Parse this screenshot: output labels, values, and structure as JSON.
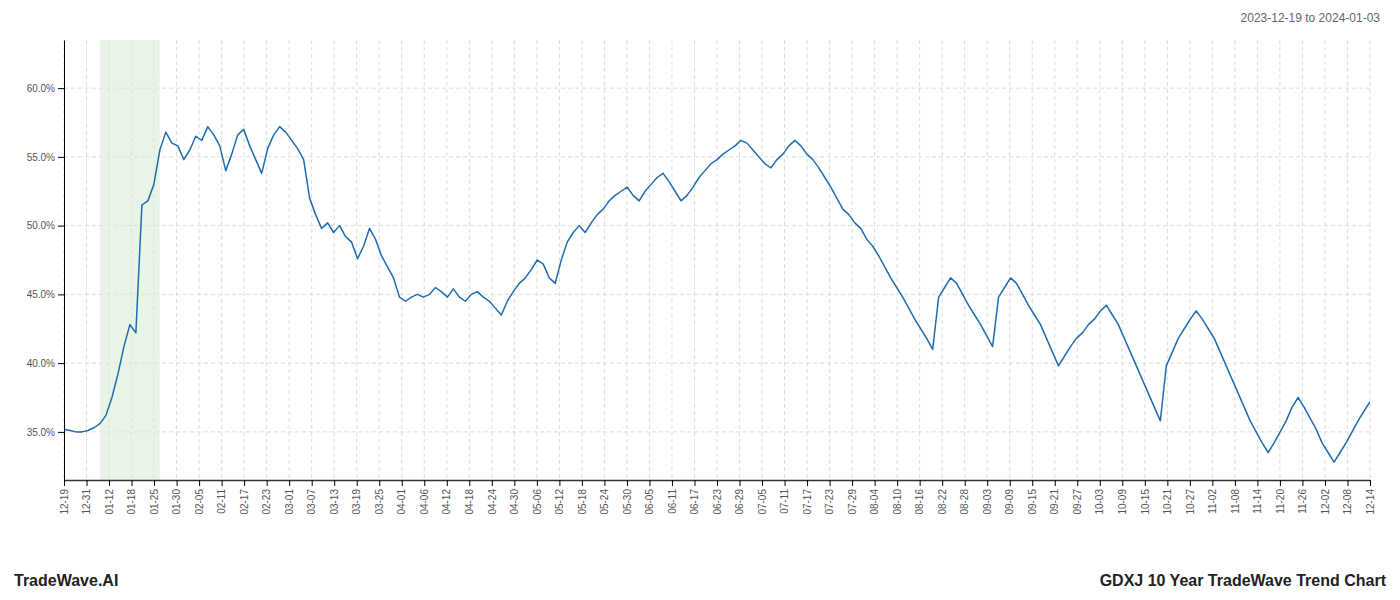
{
  "chart_data": {
    "type": "line",
    "title": "GDXJ 10 Year TradeWave Trend Chart",
    "subtitle": "2023-12-19 to 2024-01-03",
    "annotations": [
      "TradeWave.AI"
    ],
    "color": "#1f6cb0",
    "grid": true,
    "highlight": {
      "start": 6,
      "end": 16,
      "color": "#d6ecd2"
    },
    "xlim": [
      0,
      218
    ],
    "xticks": [
      {
        "value": 0,
        "label": "12-19"
      },
      {
        "value": 3.7586,
        "label": "12-31"
      },
      {
        "value": 7.5172,
        "label": "01-12"
      },
      {
        "value": 11.2759,
        "label": "01-18"
      },
      {
        "value": 15.0345,
        "label": "01-25"
      },
      {
        "value": 18.7931,
        "label": "01-30"
      },
      {
        "value": 22.5517,
        "label": "02-05"
      },
      {
        "value": 26.3103,
        "label": "02-11"
      },
      {
        "value": 30.069,
        "label": "02-17"
      },
      {
        "value": 33.8276,
        "label": "02-23"
      },
      {
        "value": 37.5862,
        "label": "03-01"
      },
      {
        "value": 41.3448,
        "label": "03-07"
      },
      {
        "value": 45.1034,
        "label": "03-13"
      },
      {
        "value": 48.8621,
        "label": "03-19"
      },
      {
        "value": 52.6207,
        "label": "03-25"
      },
      {
        "value": 56.3793,
        "label": "04-01"
      },
      {
        "value": 60.1379,
        "label": "04-06"
      },
      {
        "value": 63.8966,
        "label": "04-12"
      },
      {
        "value": 67.6552,
        "label": "04-18"
      },
      {
        "value": 71.4138,
        "label": "04-24"
      },
      {
        "value": 75.1724,
        "label": "04-30"
      },
      {
        "value": 78.931,
        "label": "05-06"
      },
      {
        "value": 82.6897,
        "label": "05-12"
      },
      {
        "value": 86.4483,
        "label": "05-18"
      },
      {
        "value": 90.2069,
        "label": "05-24"
      },
      {
        "value": 93.9655,
        "label": "05-30"
      },
      {
        "value": 97.7241,
        "label": "06-05"
      },
      {
        "value": 101.4828,
        "label": "06-11"
      },
      {
        "value": 105.2414,
        "label": "06-17"
      },
      {
        "value": 109,
        "label": "06-23"
      },
      {
        "value": 112.7586,
        "label": "06-29"
      },
      {
        "value": 116.5172,
        "label": "07-05"
      },
      {
        "value": 120.2759,
        "label": "07-11"
      },
      {
        "value": 124.0345,
        "label": "07-17"
      },
      {
        "value": 127.7931,
        "label": "07-23"
      },
      {
        "value": 131.5517,
        "label": "07-29"
      },
      {
        "value": 135.3103,
        "label": "08-04"
      },
      {
        "value": 139.069,
        "label": "08-10"
      },
      {
        "value": 142.8276,
        "label": "08-16"
      },
      {
        "value": 146.5862,
        "label": "08-22"
      },
      {
        "value": 150.3448,
        "label": "08-28"
      },
      {
        "value": 154.1034,
        "label": "09-03"
      },
      {
        "value": 157.8621,
        "label": "09-09"
      },
      {
        "value": 161.6207,
        "label": "09-15"
      },
      {
        "value": 165.3793,
        "label": "09-21"
      },
      {
        "value": 169.1379,
        "label": "09-27"
      },
      {
        "value": 172.8966,
        "label": "10-03"
      },
      {
        "value": 176.6552,
        "label": "10-09"
      },
      {
        "value": 180.4138,
        "label": "10-15"
      },
      {
        "value": 184.1724,
        "label": "10-21"
      },
      {
        "value": 187.931,
        "label": "10-27"
      },
      {
        "value": 191.6897,
        "label": "11-02"
      },
      {
        "value": 195.4483,
        "label": "11-08"
      },
      {
        "value": 199.2069,
        "label": "11-14"
      },
      {
        "value": 202.9655,
        "label": "11-20"
      },
      {
        "value": 206.7241,
        "label": "11-26"
      },
      {
        "value": 210.4828,
        "label": "12-02"
      },
      {
        "value": 214.2414,
        "label": "12-08"
      },
      {
        "value": 218,
        "label": "12-14"
      }
    ],
    "ylim": [
      0.315,
      0.635
    ],
    "yticks": [
      {
        "value": 0.35,
        "label": "35.0%"
      },
      {
        "value": 0.4,
        "label": "40.0%"
      },
      {
        "value": 0.45,
        "label": "45.0%"
      },
      {
        "value": 0.5,
        "label": "50.0%"
      },
      {
        "value": 0.55,
        "label": "55.0%"
      },
      {
        "value": 0.6,
        "label": "60.0%"
      }
    ],
    "values": [
      0.352,
      0.351,
      0.35,
      0.35,
      0.351,
      0.353,
      0.356,
      0.362,
      0.375,
      0.392,
      0.412,
      0.428,
      0.422,
      0.515,
      0.518,
      0.53,
      0.555,
      0.568,
      0.56,
      0.558,
      0.548,
      0.555,
      0.565,
      0.562,
      0.572,
      0.566,
      0.558,
      0.54,
      0.552,
      0.566,
      0.57,
      0.558,
      0.548,
      0.538,
      0.556,
      0.566,
      0.572,
      0.568,
      0.562,
      0.556,
      0.548,
      0.52,
      0.508,
      0.498,
      0.502,
      0.495,
      0.5,
      0.492,
      0.488,
      0.476,
      0.485,
      0.498,
      0.49,
      0.478,
      0.47,
      0.462,
      0.448,
      0.445,
      0.448,
      0.45,
      0.448,
      0.45,
      0.455,
      0.452,
      0.448,
      0.454,
      0.448,
      0.445,
      0.45,
      0.452,
      0.448,
      0.445,
      0.44,
      0.435,
      0.445,
      0.452,
      0.458,
      0.462,
      0.468,
      0.475,
      0.472,
      0.462,
      0.458,
      0.475,
      0.488,
      0.495,
      0.5,
      0.495,
      0.502,
      0.508,
      0.512,
      0.518,
      0.522,
      0.525,
      0.528,
      0.522,
      0.518,
      0.525,
      0.53,
      0.535,
      0.538,
      0.532,
      0.525,
      0.518,
      0.522,
      0.528,
      0.535,
      0.54,
      0.545,
      0.548,
      0.552,
      0.555,
      0.558,
      0.562,
      0.56,
      0.555,
      0.55,
      0.545,
      0.542,
      0.548,
      0.552,
      0.558,
      0.562,
      0.558,
      0.552,
      0.548,
      0.542,
      0.535,
      0.528,
      0.52,
      0.512,
      0.508,
      0.502,
      0.498,
      0.49,
      0.485,
      0.478,
      0.47,
      0.462,
      0.455,
      0.448,
      0.44,
      0.432,
      0.425,
      0.418,
      0.41,
      0.448,
      0.455,
      0.462,
      0.458,
      0.45,
      0.442,
      0.435,
      0.428,
      0.42,
      0.412,
      0.448,
      0.455,
      0.462,
      0.458,
      0.45,
      0.442,
      0.435,
      0.428,
      0.418,
      0.408,
      0.398,
      0.405,
      0.412,
      0.418,
      0.422,
      0.428,
      0.432,
      0.438,
      0.442,
      0.435,
      0.428,
      0.418,
      0.408,
      0.398,
      0.388,
      0.378,
      0.368,
      0.358,
      0.398,
      0.408,
      0.418,
      0.425,
      0.432,
      0.438,
      0.432,
      0.425,
      0.418,
      0.408,
      0.398,
      0.388,
      0.378,
      0.368,
      0.358,
      0.35,
      0.342,
      0.335,
      0.342,
      0.35,
      0.358,
      0.368,
      0.375,
      0.368,
      0.36,
      0.352,
      0.342,
      0.335,
      0.328,
      0.335,
      0.342,
      0.35,
      0.358,
      0.365,
      0.372
    ]
  }
}
